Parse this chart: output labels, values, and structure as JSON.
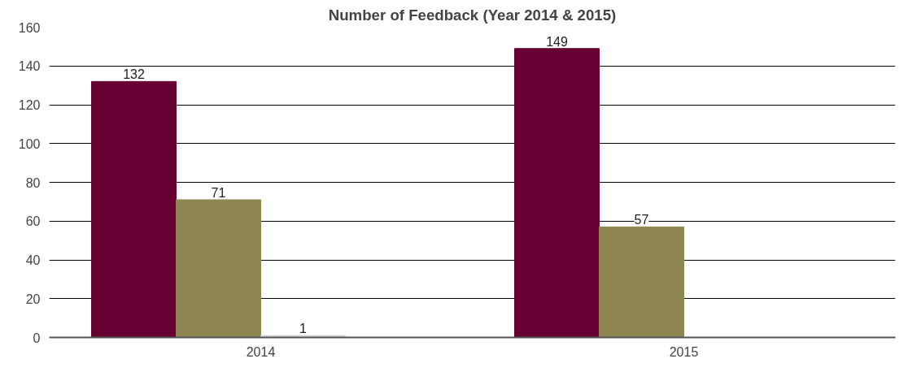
{
  "chart_data": {
    "type": "bar",
    "title": "Number of Feedback (Year 2014 & 2015)",
    "categories": [
      "2014",
      "2015"
    ],
    "series": [
      {
        "color": "#660033",
        "values": [
          132,
          149
        ]
      },
      {
        "color": "#8f8654",
        "values": [
          71,
          57
        ]
      },
      {
        "color": "#d9d9d9",
        "values": [
          1,
          null
        ]
      }
    ],
    "ylim": [
      0,
      160
    ],
    "yticks": [
      0,
      20,
      40,
      60,
      80,
      100,
      120,
      140,
      160
    ],
    "grid": "y",
    "data_labels": true
  }
}
